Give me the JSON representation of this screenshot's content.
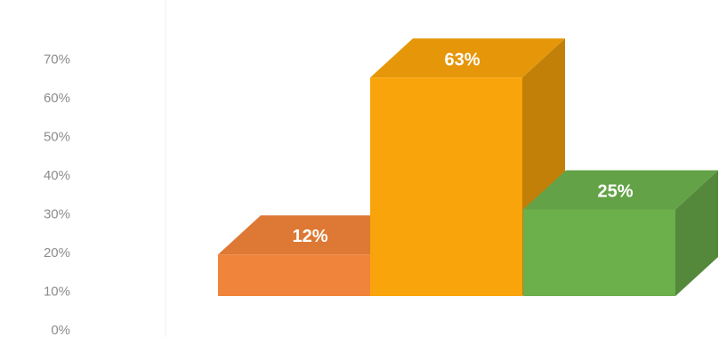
{
  "chart_data": {
    "type": "bar",
    "style": "3d",
    "categories": [
      "",
      "",
      ""
    ],
    "values": [
      12,
      63,
      25
    ],
    "value_format": "percent",
    "data_labels": [
      "12%",
      "63%",
      "25%"
    ],
    "colors": [
      "#f0843a",
      "#f9a40a",
      "#6cb04c"
    ],
    "title": "",
    "xlabel": "",
    "ylabel": "",
    "ylim": [
      0,
      70
    ],
    "yticks": [
      0,
      10,
      20,
      30,
      40,
      50,
      60,
      70
    ],
    "ytick_labels": [
      "0%",
      "10%",
      "20%",
      "30%",
      "40%",
      "50%",
      "60%",
      "70%"
    ],
    "grid": false,
    "legend": false
  }
}
